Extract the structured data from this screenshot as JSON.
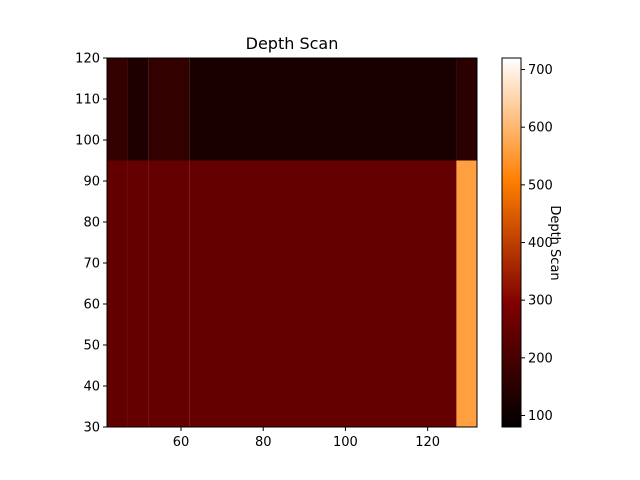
{
  "chart_data": {
    "type": "heatmap",
    "title": "Depth Scan",
    "xlabel": "",
    "ylabel": "",
    "colorbar_label": "Depth Scan",
    "colormap": "gist_heat",
    "xlim": [
      42,
      132
    ],
    "ylim": [
      30,
      120
    ],
    "clim": [
      80,
      720
    ],
    "x_ticks": [
      60,
      80,
      100,
      120
    ],
    "y_ticks": [
      30,
      40,
      50,
      60,
      70,
      80,
      90,
      100,
      110,
      120
    ],
    "colorbar_ticks": [
      100,
      200,
      300,
      400,
      500,
      600,
      700
    ],
    "x_edges": [
      42,
      47,
      52,
      62,
      127,
      132
    ],
    "y_edges": [
      30,
      95,
      120
    ],
    "values": [
      [
        245,
        250,
        250,
        250,
        560
      ],
      [
        165,
        130,
        165,
        120,
        150
      ]
    ],
    "grid": false
  }
}
